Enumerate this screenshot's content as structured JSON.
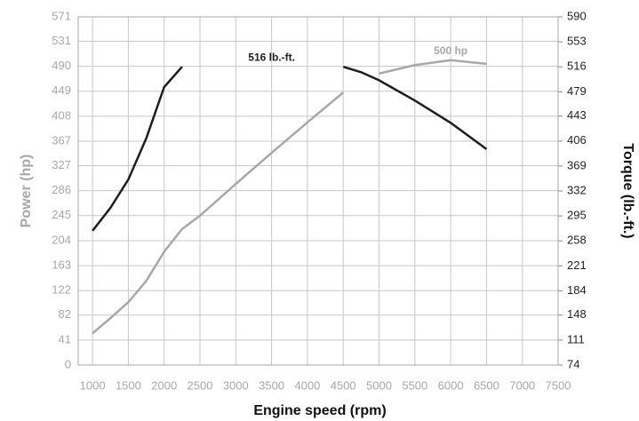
{
  "chart_data": {
    "type": "line",
    "x_label": "Engine speed (rpm)",
    "y_label": "Power (hp)",
    "y2_label": "Torque (lb.-ft.)",
    "x": [
      1000,
      1250,
      1500,
      1750,
      2000,
      2250,
      2500,
      3000,
      3500,
      4000,
      4500,
      4750,
      5000,
      5500,
      6000,
      6500
    ],
    "series": [
      {
        "name": "Power",
        "color": "#a8a8a8",
        "annotation": "500 hp",
        "values": [
          52,
          77,
          103,
          138,
          186,
          223,
          245,
          297,
          348,
          398,
          447,
          null,
          478,
          492,
          500,
          494
        ]
      },
      {
        "name": "Torque",
        "color": "#1e1e1e",
        "axis": "y2",
        "annotation": "516 lb.-ft.",
        "values": [
          273,
          307,
          349,
          410,
          486,
          516,
          null,
          null,
          null,
          null,
          516,
          508,
          496,
          466,
          433,
          394
        ]
      }
    ],
    "xlim": [
      800,
      7500
    ],
    "xticks": [
      1000,
      1500,
      2000,
      2500,
      3000,
      3500,
      4000,
      4500,
      5000,
      5500,
      6000,
      6500,
      7000,
      7500
    ],
    "ylim": [
      0,
      571
    ],
    "yticks": [
      0,
      41,
      82,
      122,
      163,
      204,
      245,
      286,
      327,
      367,
      408,
      449,
      490,
      531,
      571
    ],
    "y2lim": [
      74,
      590
    ],
    "y2ticks": [
      74,
      111,
      148,
      184,
      221,
      258,
      295,
      332,
      369,
      406,
      443,
      479,
      516,
      553,
      590
    ],
    "grid": true
  }
}
